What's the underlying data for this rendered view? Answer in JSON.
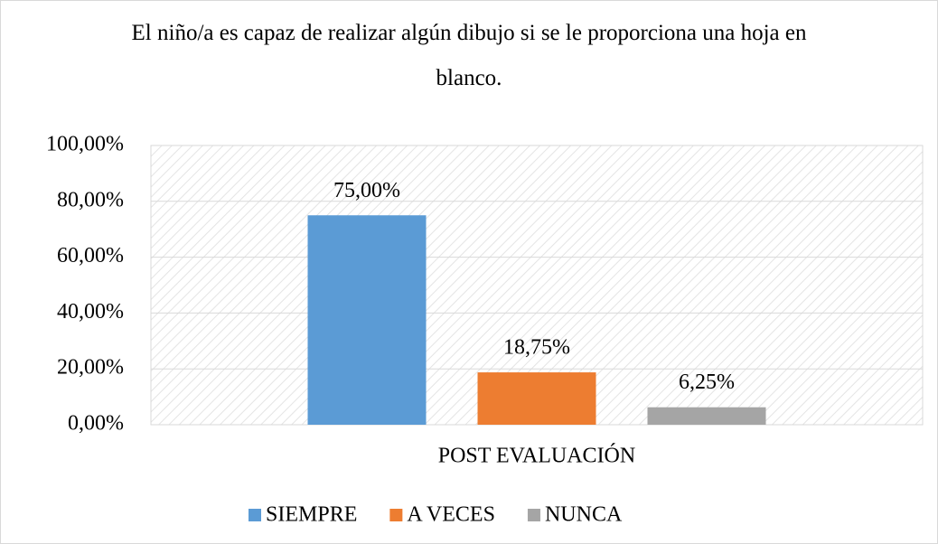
{
  "chart_data": {
    "type": "bar",
    "title": "El niño/a es capaz de realizar algún dibujo si se le proporciona una hoja en blanco.",
    "categories": [
      "POST EVALUACIÓN"
    ],
    "series": [
      {
        "name": "SIEMPRE",
        "color": "#5b9bd5",
        "values": [
          75
        ],
        "value_labels": [
          "75,00%"
        ]
      },
      {
        "name": "A VECES",
        "color": "#ed7d31",
        "values": [
          18.75
        ],
        "value_labels": [
          "18,75%"
        ]
      },
      {
        "name": "NUNCA",
        "color": "#a5a5a5",
        "values": [
          6.25
        ],
        "value_labels": [
          "6,25%"
        ]
      }
    ],
    "ylim": [
      0,
      100
    ],
    "yticks": [
      {
        "value": 0,
        "label": "0,00%"
      },
      {
        "value": 20,
        "label": "20,00%"
      },
      {
        "value": 40,
        "label": "40,00%"
      },
      {
        "value": 60,
        "label": "60,00%"
      },
      {
        "value": 80,
        "label": "80,00%"
      },
      {
        "value": 100,
        "label": "100,00%"
      }
    ],
    "grid": true,
    "legend": "bottom"
  }
}
